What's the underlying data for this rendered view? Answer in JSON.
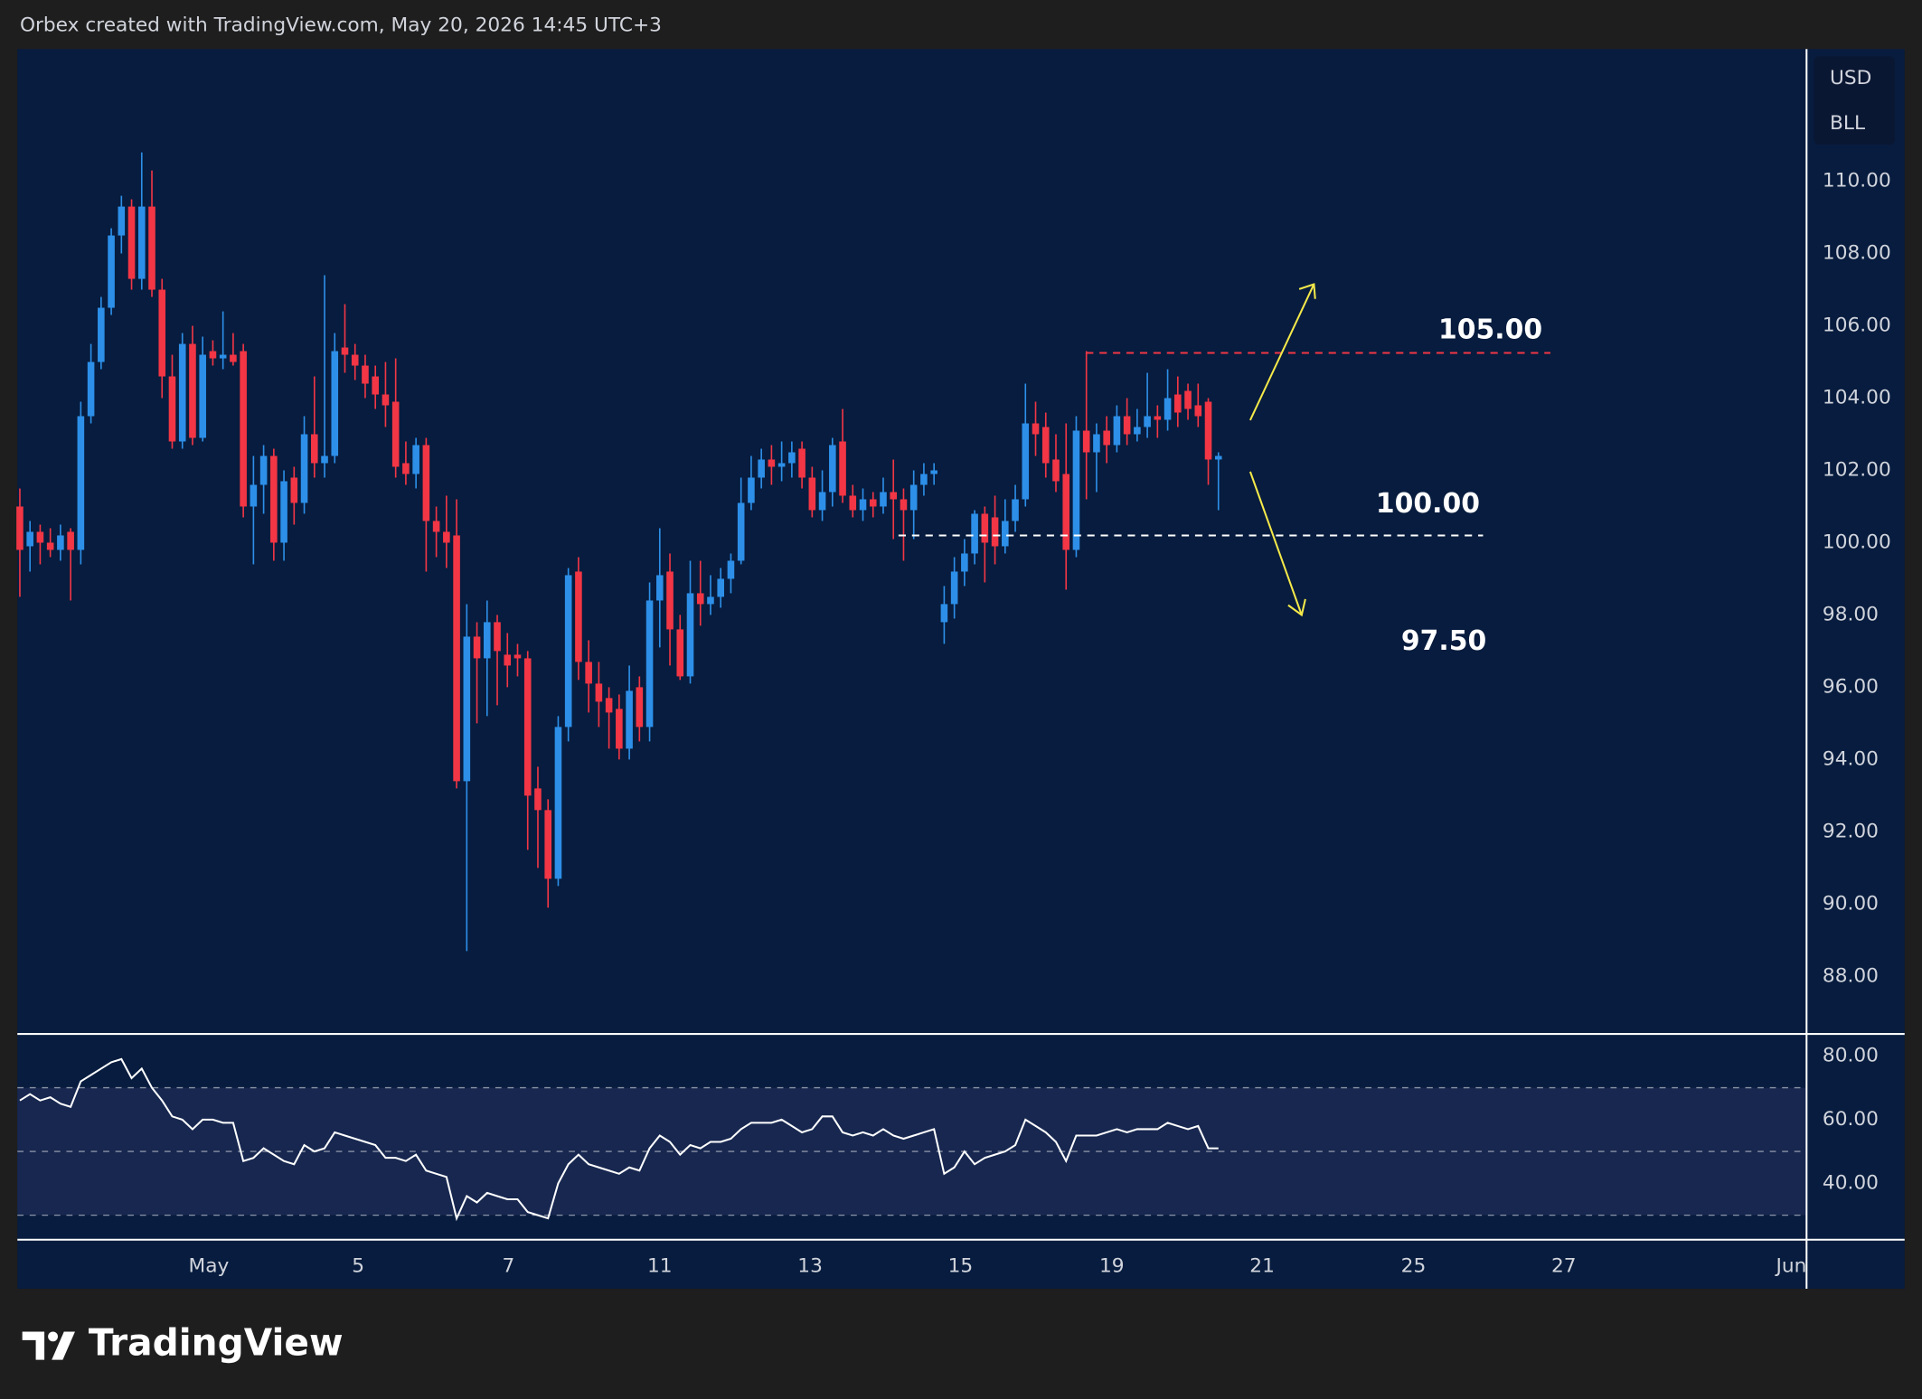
{
  "header": {
    "text": "Orbex created with TradingView.com, May 20, 2026 14:45 UTC+3"
  },
  "logo": "TradingView",
  "currency": "USD",
  "unit": "BLL",
  "chart_data": [
    {
      "type": "candlestick",
      "up_color": "#2d8fe8",
      "down_color": "#f23645",
      "xlim": [
        -0.24,
        175.9
      ],
      "ylim": [
        86.44,
        113.66
      ],
      "yticks": [
        {
          "value": 88,
          "label": "88.00"
        },
        {
          "value": 90,
          "label": "90.00"
        },
        {
          "value": 92,
          "label": "92.00"
        },
        {
          "value": 94,
          "label": "94.00"
        },
        {
          "value": 96,
          "label": "96.00"
        },
        {
          "value": 98,
          "label": "98.00"
        },
        {
          "value": 100,
          "label": "100.00"
        },
        {
          "value": 102,
          "label": "102.00"
        },
        {
          "value": 104,
          "label": "104.00"
        },
        {
          "value": 106,
          "label": "106.00"
        },
        {
          "value": 108,
          "label": "108.00"
        },
        {
          "value": 110,
          "label": "110.00"
        }
      ],
      "grid": false,
      "levels": [
        {
          "value": 105.25,
          "color": "#f23645"
        },
        {
          "value": 100.2,
          "color": "#ffffff"
        }
      ],
      "annotations": [
        "105.00",
        "100.00",
        "97.50"
      ],
      "open": [
        101,
        99.9,
        100.3,
        100,
        99.8,
        100.3,
        99.8,
        103.5,
        105,
        106.5,
        108.5,
        109.3,
        107.3,
        109.3,
        107,
        104.6,
        102.8,
        105.5,
        102.9,
        105.3,
        105.1,
        105.2,
        105.3,
        101,
        101.6,
        102.4,
        100,
        101.8,
        101.1,
        103,
        102.2,
        102.4,
        105.4,
        105.2,
        104.9,
        104.6,
        104.1,
        103.9,
        102.2,
        101.9,
        102.7,
        100.6,
        100.3,
        100.2,
        93.4,
        97.4,
        96.8,
        97.8,
        96.9,
        96.9,
        96.8,
        93.2,
        92.6,
        90.7,
        94.9,
        99.2,
        96.7,
        96.1,
        95.7,
        95.4,
        94.3,
        96,
        94.9,
        98.4,
        99.2,
        97.6,
        96.3,
        98.6,
        98.3,
        98.5,
        99,
        99.5,
        101.1,
        101.8,
        102.3,
        102.1,
        102.2,
        102.6,
        101.8,
        100.9,
        101.4,
        102.8,
        101.3,
        100.9,
        101.2,
        101,
        101.4,
        101.2,
        100.9,
        101.6,
        101.9,
        97.8,
        98.3,
        99.2,
        99.7,
        100.8,
        100.7,
        99.9,
        100.6,
        101.2,
        103.3,
        103.2,
        102.3,
        101.9,
        99.8,
        103.1,
        102.5,
        103.1,
        102.7,
        103.5,
        103,
        103.2,
        103.5,
        103.4,
        104.1,
        104.2,
        103.8,
        103.9,
        102.3
      ],
      "high": [
        101.5,
        100.6,
        100.5,
        100.4,
        100.5,
        100.4,
        103.9,
        105.5,
        106.8,
        108.7,
        109.6,
        109.5,
        110.8,
        110.3,
        107.3,
        105.2,
        105.8,
        106,
        105.7,
        105.6,
        106.4,
        105.8,
        105.5,
        102.4,
        102.7,
        102.6,
        102,
        102.1,
        103.5,
        104.6,
        107.4,
        105.8,
        106.6,
        105.5,
        105.2,
        104.9,
        105,
        105.1,
        102.8,
        102.9,
        102.9,
        101,
        101.3,
        101.2,
        98.3,
        97.8,
        98.4,
        98,
        97.5,
        97.2,
        97,
        93.8,
        92.9,
        95.2,
        99.3,
        99.6,
        97.3,
        96.7,
        96,
        95.8,
        96.6,
        96.3,
        98.9,
        100.4,
        99.7,
        98,
        99.5,
        99.5,
        99.1,
        99.3,
        99.7,
        101.8,
        102.4,
        102.6,
        102.7,
        102.8,
        102.8,
        102.8,
        102.1,
        102,
        102.9,
        103.7,
        101.6,
        101.5,
        101.4,
        101.8,
        102.3,
        101.5,
        102,
        102.2,
        102.2,
        98.8,
        99.6,
        100.1,
        100.9,
        101,
        101.3,
        101.2,
        101.6,
        104.4,
        103.9,
        103.6,
        103,
        103.3,
        103.5,
        105.3,
        103.3,
        103.5,
        103.8,
        104,
        103.7,
        104.7,
        103.8,
        104.8,
        104.6,
        104.4,
        104.4,
        104,
        102.5
      ],
      "low": [
        98.5,
        99.2,
        99.4,
        99.6,
        99.5,
        98.4,
        99.4,
        103.3,
        104.8,
        106.3,
        108,
        107,
        107,
        106.8,
        104,
        102.6,
        102.6,
        102.7,
        102.8,
        104.9,
        104.8,
        104.9,
        100.7,
        99.4,
        100.8,
        99.5,
        99.5,
        100.5,
        100.8,
        101.8,
        101.8,
        102.2,
        104.7,
        104.5,
        104,
        103.7,
        103.2,
        101.8,
        101.6,
        101.5,
        99.2,
        99.6,
        99.3,
        93.2,
        88.7,
        95,
        95.2,
        95.5,
        96,
        96.3,
        91.5,
        91,
        89.9,
        90.5,
        94.5,
        96.2,
        95.3,
        94.9,
        94.3,
        94,
        94,
        94.5,
        94.5,
        97.1,
        96.6,
        96.2,
        96.1,
        97.7,
        98,
        98.2,
        98.6,
        99.4,
        100.9,
        101.5,
        101.6,
        101.7,
        101.8,
        101.5,
        100.7,
        100.6,
        101,
        101.1,
        100.7,
        100.6,
        100.7,
        100.8,
        100.1,
        99.5,
        100.1,
        101.3,
        101.6,
        97.2,
        97.9,
        98.8,
        99.4,
        98.9,
        99.4,
        99.7,
        100.3,
        101,
        102.4,
        101.8,
        101.4,
        98.7,
        99.6,
        101.2,
        101.4,
        102.2,
        102.5,
        102.7,
        102.8,
        102.9,
        102.9,
        103.1,
        103.2,
        103.4,
        103.2,
        101.6,
        100.9
      ],
      "close": [
        99.8,
        100.3,
        100,
        99.8,
        100.2,
        99.8,
        103.5,
        105,
        106.5,
        108.5,
        109.3,
        107.3,
        109.3,
        107,
        104.6,
        102.8,
        105.5,
        102.9,
        105.2,
        105.1,
        105.2,
        105,
        101,
        101.6,
        102.4,
        100,
        101.7,
        101.1,
        103,
        102.2,
        102.4,
        105.3,
        105.2,
        104.9,
        104.4,
        104.1,
        103.8,
        102.1,
        101.9,
        102.7,
        100.6,
        100.3,
        100,
        93.4,
        97.4,
        96.8,
        97.8,
        97,
        96.6,
        96.8,
        93,
        92.6,
        90.7,
        94.9,
        99.1,
        96.7,
        96.1,
        95.6,
        95.3,
        94.3,
        95.9,
        94.9,
        98.4,
        99.1,
        97.6,
        96.3,
        98.6,
        98.3,
        98.5,
        99,
        99.5,
        101.1,
        101.8,
        102.3,
        102.1,
        102.2,
        102.5,
        101.8,
        100.9,
        101.4,
        102.7,
        101.3,
        100.9,
        101.2,
        101,
        101.4,
        101.2,
        100.9,
        101.6,
        101.9,
        102,
        98.3,
        99.2,
        99.7,
        100.8,
        100,
        99.9,
        100.6,
        101.2,
        103.3,
        103,
        102.2,
        101.7,
        99.8,
        103.1,
        102.5,
        103,
        102.7,
        103.5,
        103,
        103.2,
        103.5,
        103.4,
        104,
        103.6,
        103.7,
        103.5,
        102.3,
        102.4
      ]
    },
    {
      "type": "line",
      "color": "#ffffff",
      "xlim": [
        -0.24,
        175.9
      ],
      "ylim": [
        22.3,
        86.5
      ],
      "yticks": [
        {
          "value": 40,
          "label": "40.00"
        },
        {
          "value": 60,
          "label": "60.00"
        },
        {
          "value": 80,
          "label": "80.00"
        }
      ],
      "levels": [
        70,
        50,
        30
      ],
      "xticks": [
        {
          "value": 18.6,
          "label": "May"
        },
        {
          "value": 33.3,
          "label": "5"
        },
        {
          "value": 48.1,
          "label": "7"
        },
        {
          "value": 63,
          "label": "11"
        },
        {
          "value": 77.8,
          "label": "13"
        },
        {
          "value": 92.6,
          "label": "15"
        },
        {
          "value": 107.5,
          "label": "19"
        },
        {
          "value": 122.3,
          "label": "21"
        },
        {
          "value": 137.2,
          "label": "25"
        },
        {
          "value": 152,
          "label": "27"
        },
        {
          "value": 174.4,
          "label": "Jun"
        }
      ],
      "values": [
        66,
        68,
        66,
        67,
        65,
        64,
        72,
        74,
        76,
        78,
        79,
        73,
        76,
        70,
        66,
        61,
        60,
        57,
        60,
        60,
        59,
        59,
        47,
        48,
        51,
        49,
        47,
        46,
        52,
        50,
        51,
        56,
        55,
        54,
        53,
        52,
        48,
        48,
        47,
        49,
        44,
        43,
        42,
        29,
        36,
        34,
        37,
        36,
        35,
        35,
        31,
        30,
        29,
        40,
        46,
        49,
        46,
        45,
        44,
        43,
        45,
        44,
        51,
        55,
        53,
        49,
        52,
        51,
        53,
        53,
        54,
        57,
        59,
        59,
        59,
        60,
        58,
        56,
        57,
        61,
        61,
        56,
        55,
        56,
        55,
        57,
        55,
        54,
        55,
        56,
        57,
        43,
        45,
        50,
        46,
        48,
        49,
        50,
        52,
        60,
        58,
        56,
        53,
        47,
        55,
        55,
        55,
        56,
        57,
        56,
        57,
        57,
        57,
        59,
        58,
        57,
        58,
        51,
        51
      ]
    }
  ]
}
